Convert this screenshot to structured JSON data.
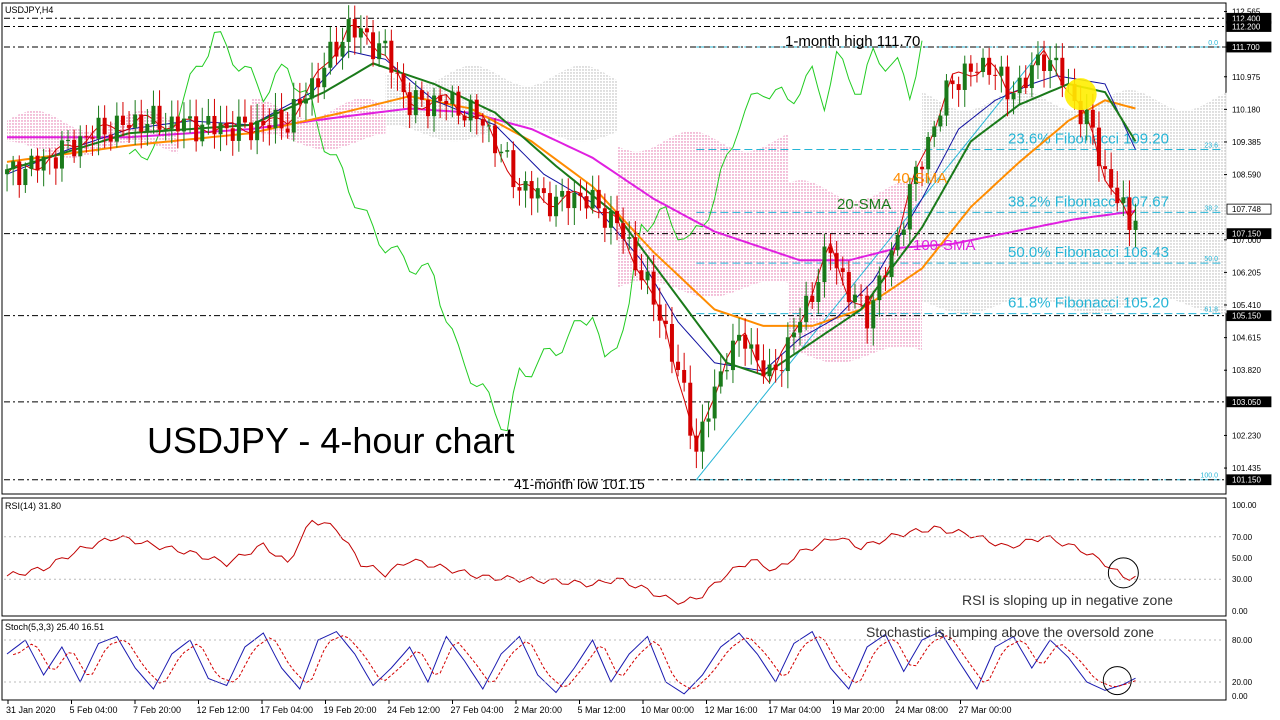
{
  "chart_data": {
    "type": "line",
    "symbol_label": "USDJPY,H4",
    "title": "USDJPY - 4-hour chart",
    "colors": {
      "bull_candle": "#1a7a1a",
      "bear_candle": "#d40000",
      "sma20": "#1a7a1a",
      "sma40": "#ff8c00",
      "sma100": "#e020e0",
      "tenkan": "#d40000",
      "kijun": "#1010a0",
      "chikou": "#22cc22",
      "fib": "#26b5d6",
      "rsi": "#c00000",
      "stoch_k": "#1a1ab0",
      "stoch_d": "#d40000",
      "highlight_circle": "#ffee00"
    },
    "y_axis": {
      "ticks": [
        "112.565",
        "111.700",
        "110.975",
        "110.180",
        "109.385",
        "108.590",
        "107.000",
        "106.205",
        "105.410",
        "104.615",
        "103.820",
        "102.230",
        "101.435"
      ],
      "range": [
        100.9,
        112.7
      ]
    },
    "x_axis": {
      "ticks": [
        "31 Jan 2020",
        "5 Feb 04:00",
        "7 Feb 20:00",
        "12 Feb 12:00",
        "17 Feb 04:00",
        "19 Feb 20:00",
        "24 Feb 12:00",
        "27 Feb 04:00",
        "2 Mar 20:00",
        "5 Mar 12:00",
        "10 Mar 00:00",
        "12 Mar 16:00",
        "17 Mar 04:00",
        "19 Mar 20:00",
        "24 Mar 08:00",
        "27 Mar 00:00"
      ]
    },
    "price_tags": [
      {
        "value": "112.400",
        "price": 112.4,
        "style": "dash"
      },
      {
        "value": "112.200",
        "price": 112.2,
        "style": "dash"
      },
      {
        "value": "111.700",
        "price": 111.7,
        "style": "dash"
      },
      {
        "value": "107.748",
        "price": 107.748,
        "style": "current"
      },
      {
        "value": "107.150",
        "price": 107.15,
        "style": "dash"
      },
      {
        "value": "105.150",
        "price": 105.15,
        "style": "dash"
      },
      {
        "value": "103.050",
        "price": 103.05,
        "style": "dash"
      },
      {
        "value": "101.150",
        "price": 101.15,
        "style": "dash"
      }
    ],
    "fibonacci": [
      {
        "level": "0.0",
        "price": 111.7,
        "text": ""
      },
      {
        "level": "23.6",
        "price": 109.2,
        "text": "23.6% Fibonacci 109.20"
      },
      {
        "level": "38.2",
        "price": 107.67,
        "text": "38.2% Fibonacci 107.67"
      },
      {
        "level": "50.0",
        "price": 106.43,
        "text": "50.0% Fibonacci 106.43"
      },
      {
        "level": "61.8",
        "price": 105.2,
        "text": "61.8% Fibonacci 105.20"
      },
      {
        "level": "100.0",
        "price": 101.15,
        "text": ""
      }
    ],
    "annotations": {
      "high": "1-month high 111.70",
      "low": "41-month low 101.15",
      "sma20": "20-SMA",
      "sma40": "40-SMA",
      "sma100": "100-SMA"
    },
    "price_series": {
      "close_keypoints": [
        [
          0,
          108.6
        ],
        [
          6,
          108.9
        ],
        [
          14,
          109.6
        ],
        [
          22,
          109.9
        ],
        [
          30,
          109.8
        ],
        [
          38,
          109.7
        ],
        [
          46,
          109.9
        ],
        [
          52,
          111.2
        ],
        [
          56,
          112.2
        ],
        [
          62,
          111.6
        ],
        [
          66,
          110.3
        ],
        [
          72,
          110.4
        ],
        [
          78,
          109.9
        ],
        [
          84,
          108.3
        ],
        [
          90,
          107.9
        ],
        [
          94,
          108.1
        ],
        [
          100,
          107.4
        ],
        [
          104,
          106.2
        ],
        [
          108,
          104.8
        ],
        [
          111,
          103.2
        ],
        [
          113,
          101.9
        ],
        [
          115,
          102.8
        ],
        [
          118,
          104.2
        ],
        [
          121,
          104.6
        ],
        [
          125,
          103.6
        ],
        [
          128,
          104.4
        ],
        [
          131,
          105.4
        ],
        [
          135,
          106.8
        ],
        [
          138,
          105.7
        ],
        [
          141,
          105.2
        ],
        [
          145,
          106.6
        ],
        [
          149,
          108.6
        ],
        [
          152,
          109.8
        ],
        [
          155,
          110.9
        ],
        [
          158,
          111.1
        ],
        [
          161,
          111.3
        ],
        [
          164,
          110.6
        ],
        [
          167,
          110.9
        ],
        [
          170,
          111.5
        ],
        [
          172,
          111.2
        ],
        [
          175,
          110.4
        ],
        [
          178,
          109.6
        ],
        [
          180,
          108.6
        ],
        [
          182,
          108.0
        ],
        [
          184,
          107.4
        ],
        [
          185,
          107.748
        ]
      ],
      "sma20_keypoints": [
        [
          0,
          108.7
        ],
        [
          20,
          109.6
        ],
        [
          40,
          109.8
        ],
        [
          52,
          110.6
        ],
        [
          60,
          111.3
        ],
        [
          70,
          110.8
        ],
        [
          80,
          110.1
        ],
        [
          90,
          108.8
        ],
        [
          100,
          107.6
        ],
        [
          110,
          105.6
        ],
        [
          118,
          104.0
        ],
        [
          124,
          103.7
        ],
        [
          130,
          104.3
        ],
        [
          140,
          105.3
        ],
        [
          150,
          107.3
        ],
        [
          158,
          109.4
        ],
        [
          166,
          110.3
        ],
        [
          174,
          110.8
        ],
        [
          180,
          110.6
        ],
        [
          185,
          109.4
        ]
      ],
      "sma40_keypoints": [
        [
          0,
          108.9
        ],
        [
          20,
          109.3
        ],
        [
          40,
          109.6
        ],
        [
          55,
          110.1
        ],
        [
          66,
          110.5
        ],
        [
          76,
          110.2
        ],
        [
          86,
          109.4
        ],
        [
          96,
          108.3
        ],
        [
          106,
          106.7
        ],
        [
          116,
          105.3
        ],
        [
          124,
          104.9
        ],
        [
          132,
          104.9
        ],
        [
          140,
          105.3
        ],
        [
          150,
          106.3
        ],
        [
          158,
          107.8
        ],
        [
          166,
          108.9
        ],
        [
          174,
          109.9
        ],
        [
          180,
          110.4
        ],
        [
          185,
          110.2
        ]
      ],
      "sma100_keypoints": [
        [
          0,
          109.5
        ],
        [
          20,
          109.5
        ],
        [
          40,
          109.7
        ],
        [
          55,
          110.0
        ],
        [
          66,
          110.2
        ],
        [
          76,
          110.1
        ],
        [
          86,
          109.7
        ],
        [
          96,
          109.0
        ],
        [
          106,
          108.0
        ],
        [
          116,
          107.2
        ],
        [
          124,
          106.8
        ],
        [
          130,
          106.5
        ],
        [
          138,
          106.5
        ],
        [
          146,
          106.8
        ],
        [
          155,
          106.9
        ],
        [
          165,
          107.2
        ],
        [
          175,
          107.5
        ],
        [
          185,
          107.7
        ]
      ],
      "kijun_keypoints": [
        [
          0,
          108.6
        ],
        [
          10,
          109.2
        ],
        [
          20,
          109.7
        ],
        [
          30,
          109.9
        ],
        [
          40,
          109.8
        ],
        [
          50,
          110.6
        ],
        [
          56,
          111.6
        ],
        [
          62,
          111.4
        ],
        [
          70,
          110.4
        ],
        [
          80,
          109.8
        ],
        [
          88,
          108.6
        ],
        [
          96,
          107.9
        ],
        [
          104,
          106.5
        ],
        [
          110,
          105.0
        ],
        [
          116,
          104.0
        ],
        [
          124,
          103.8
        ],
        [
          130,
          104.6
        ],
        [
          136,
          105.1
        ],
        [
          142,
          106.0
        ],
        [
          150,
          108.0
        ],
        [
          156,
          109.7
        ],
        [
          162,
          110.4
        ],
        [
          168,
          110.8
        ],
        [
          172,
          111.0
        ],
        [
          176,
          110.9
        ],
        [
          180,
          110.8
        ],
        [
          185,
          109.2
        ]
      ],
      "chikou_keypoints": [
        [
          20,
          108.9
        ],
        [
          26,
          109.5
        ],
        [
          30,
          110.8
        ],
        [
          34,
          112.0
        ],
        [
          38,
          111.3
        ],
        [
          42,
          110.6
        ],
        [
          46,
          111.2
        ],
        [
          50,
          110.2
        ],
        [
          52,
          109.4
        ],
        [
          56,
          108.3
        ],
        [
          60,
          107.2
        ],
        [
          64,
          106.6
        ],
        [
          70,
          106.1
        ],
        [
          74,
          104.2
        ],
        [
          78,
          103.3
        ],
        [
          82,
          102.4
        ],
        [
          84,
          103.7
        ],
        [
          88,
          104.1
        ],
        [
          92,
          104.6
        ],
        [
          96,
          105.3
        ],
        [
          98,
          103.9
        ],
        [
          102,
          105.3
        ],
        [
          104,
          107.4
        ],
        [
          108,
          107.6
        ],
        [
          112,
          106.9
        ],
        [
          116,
          108.0
        ],
        [
          120,
          109.9
        ],
        [
          124,
          110.7
        ],
        [
          128,
          110.4
        ],
        [
          132,
          111.0
        ],
        [
          134,
          110.4
        ],
        [
          136,
          111.4
        ],
        [
          140,
          110.6
        ],
        [
          142,
          111.5
        ],
        [
          146,
          111.2
        ],
        [
          148,
          110.6
        ],
        [
          150,
          111.8
        ]
      ],
      "cloud_bands": [
        {
          "from": 0,
          "to": 28,
          "top": 109.9,
          "bottom": 109.2,
          "tone": "pink"
        },
        {
          "from": 40,
          "to": 62,
          "top": 110.2,
          "bottom": 109.4,
          "tone": "pink"
        },
        {
          "from": 62,
          "to": 100,
          "top": 111.0,
          "bottom": 109.6,
          "tone": "gray"
        },
        {
          "from": 100,
          "to": 128,
          "top": 109.4,
          "bottom": 105.8,
          "tone": "pink"
        },
        {
          "from": 128,
          "to": 150,
          "top": 108.2,
          "bottom": 104.2,
          "tone": "pink"
        },
        {
          "from": 150,
          "to": 200,
          "top": 110.4,
          "bottom": 105.4,
          "tone": "gray"
        }
      ]
    },
    "rsi_panel": {
      "label": "RSI(14) 31.80",
      "ticks": [
        "100.00",
        "70.00",
        "50.00",
        "30.00",
        "0.00"
      ],
      "range": [
        0,
        100
      ],
      "keypoints": [
        [
          0,
          33
        ],
        [
          6,
          40
        ],
        [
          12,
          58
        ],
        [
          18,
          70
        ],
        [
          24,
          62
        ],
        [
          30,
          55
        ],
        [
          36,
          45
        ],
        [
          42,
          62
        ],
        [
          46,
          45
        ],
        [
          50,
          86
        ],
        [
          54,
          78
        ],
        [
          58,
          45
        ],
        [
          62,
          35
        ],
        [
          66,
          48
        ],
        [
          72,
          40
        ],
        [
          78,
          32
        ],
        [
          84,
          30
        ],
        [
          90,
          28
        ],
        [
          96,
          25
        ],
        [
          100,
          30
        ],
        [
          104,
          22
        ],
        [
          108,
          12
        ],
        [
          111,
          8
        ],
        [
          114,
          15
        ],
        [
          118,
          35
        ],
        [
          122,
          48
        ],
        [
          126,
          38
        ],
        [
          130,
          55
        ],
        [
          136,
          70
        ],
        [
          140,
          60
        ],
        [
          146,
          72
        ],
        [
          152,
          78
        ],
        [
          158,
          72
        ],
        [
          164,
          60
        ],
        [
          170,
          70
        ],
        [
          176,
          58
        ],
        [
          180,
          45
        ],
        [
          183,
          32
        ],
        [
          185,
          31.8
        ]
      ],
      "note": "RSI is sloping up in negative zone"
    },
    "stoch_panel": {
      "label": "Stoch(5,3,3) 25.40 16.51",
      "ticks": [
        "80.00",
        "20.00",
        "0.00"
      ],
      "range": [
        0,
        100
      ],
      "keypoints": [
        [
          0,
          60
        ],
        [
          3,
          80
        ],
        [
          6,
          30
        ],
        [
          9,
          70
        ],
        [
          12,
          20
        ],
        [
          15,
          75
        ],
        [
          18,
          85
        ],
        [
          21,
          40
        ],
        [
          24,
          10
        ],
        [
          27,
          60
        ],
        [
          30,
          80
        ],
        [
          33,
          25
        ],
        [
          36,
          15
        ],
        [
          39,
          70
        ],
        [
          42,
          90
        ],
        [
          45,
          40
        ],
        [
          48,
          10
        ],
        [
          51,
          80
        ],
        [
          54,
          92
        ],
        [
          57,
          60
        ],
        [
          60,
          15
        ],
        [
          63,
          40
        ],
        [
          66,
          70
        ],
        [
          69,
          20
        ],
        [
          72,
          85
        ],
        [
          75,
          50
        ],
        [
          78,
          10
        ],
        [
          81,
          60
        ],
        [
          84,
          85
        ],
        [
          87,
          30
        ],
        [
          90,
          5
        ],
        [
          93,
          40
        ],
        [
          96,
          80
        ],
        [
          99,
          20
        ],
        [
          102,
          60
        ],
        [
          105,
          85
        ],
        [
          108,
          20
        ],
        [
          111,
          3
        ],
        [
          114,
          30
        ],
        [
          117,
          70
        ],
        [
          120,
          90
        ],
        [
          123,
          60
        ],
        [
          126,
          20
        ],
        [
          129,
          75
        ],
        [
          132,
          92
        ],
        [
          135,
          40
        ],
        [
          138,
          10
        ],
        [
          141,
          70
        ],
        [
          144,
          88
        ],
        [
          147,
          35
        ],
        [
          150,
          80
        ],
        [
          153,
          92
        ],
        [
          156,
          50
        ],
        [
          159,
          10
        ],
        [
          162,
          70
        ],
        [
          165,
          85
        ],
        [
          168,
          40
        ],
        [
          171,
          80
        ],
        [
          174,
          55
        ],
        [
          177,
          20
        ],
        [
          180,
          8
        ],
        [
          183,
          16.5
        ],
        [
          185,
          25.4
        ]
      ],
      "note": "Stochastic is jumping above the oversold zone"
    }
  }
}
